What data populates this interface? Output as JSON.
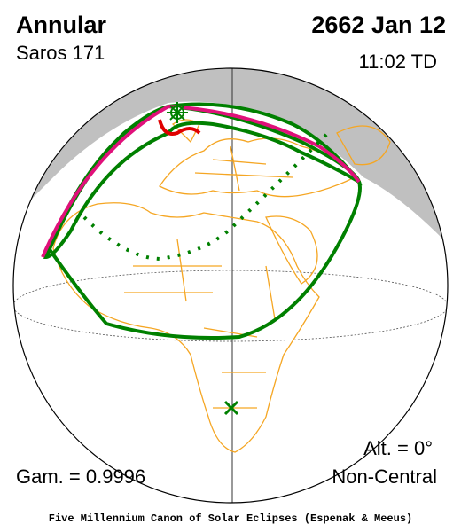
{
  "header": {
    "title": "Annular",
    "saros": "Saros 171",
    "date": "2662 Jan 12",
    "time": "11:02 TD"
  },
  "footer": {
    "altitude": "Alt. = 0°",
    "gamma": "Gam. = 0.9996",
    "eclipse_type": "Non-Central",
    "credit": "Five Millennium Canon of Solar Eclipses (Espenak & Meeus)"
  }
}
